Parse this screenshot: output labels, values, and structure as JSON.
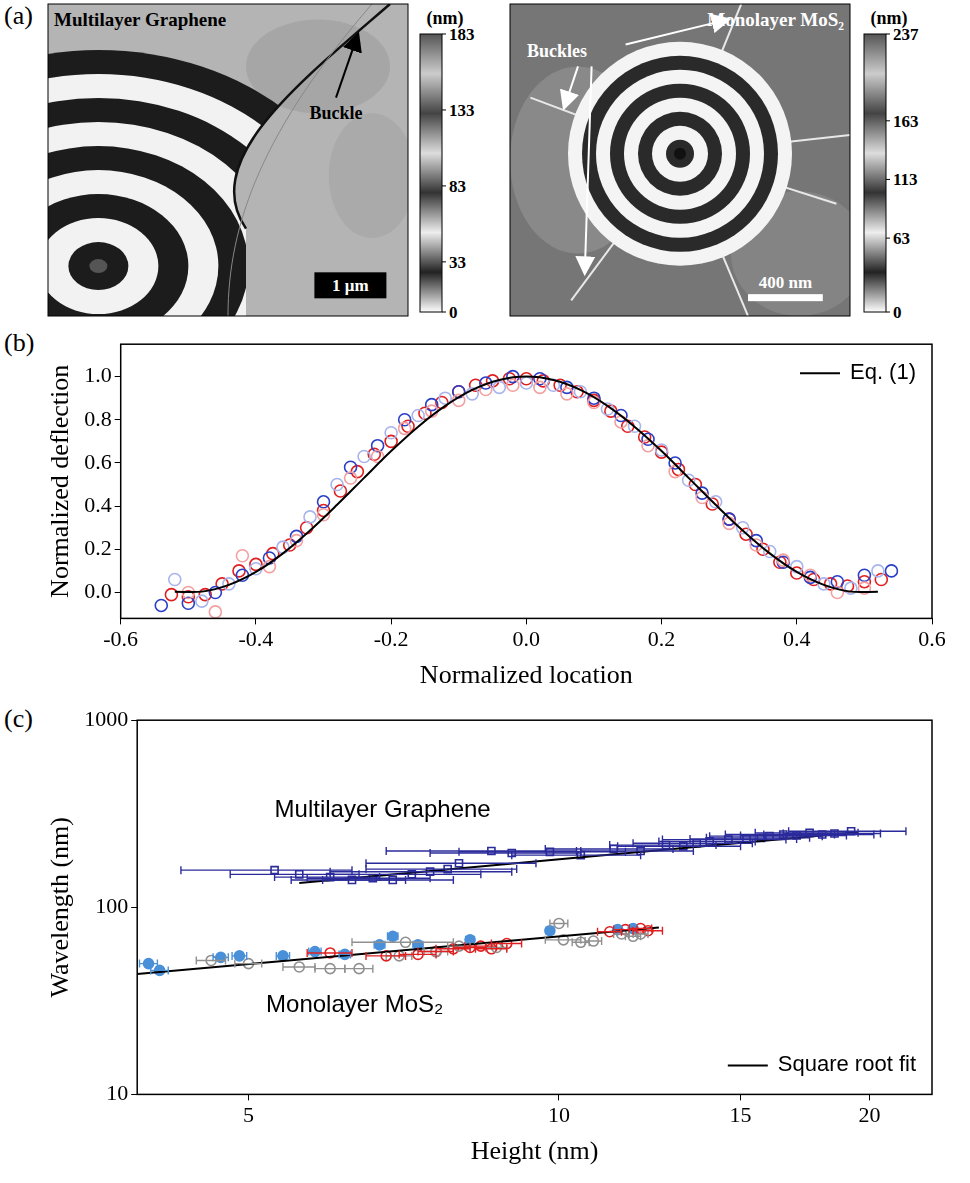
{
  "images": {
    "panel_label": "(a)",
    "items": [
      {
        "title": "Multilayer Graphene",
        "annotations": [
          "Buckle"
        ],
        "scale_bar": "1 μm",
        "colorbar": {
          "title": "(nm)",
          "range": [
            0,
            183
          ],
          "ticks": [
            0,
            33,
            83,
            133,
            183
          ]
        }
      },
      {
        "title": "Monolayer MoS₂",
        "annotations": [
          "Buckles"
        ],
        "scale_bar": "400 nm",
        "colorbar": {
          "title": "(nm)",
          "range": [
            0,
            237
          ],
          "ticks": [
            0,
            63,
            113,
            163,
            237
          ]
        }
      }
    ]
  },
  "chart_data": [
    {
      "panel_label": "(b)",
      "type": "scatter",
      "x_label": "Normalized location",
      "y_label": "Normalized deflection",
      "xlim": [
        -0.6,
        0.6
      ],
      "ylim": [
        -0.12,
        1.15
      ],
      "xticks": [
        -0.6,
        -0.4,
        -0.2,
        {
          "value": 0,
          "label": "0.0"
        },
        0.2,
        0.4,
        0.6
      ],
      "yticks": [
        {
          "value": 0,
          "label": "0.0"
        },
        0.2,
        0.4,
        0.6,
        0.8,
        {
          "value": 1,
          "label": "1.0"
        }
      ],
      "grid": false,
      "legend": "upper right",
      "series": [
        {
          "color": "#f2a0a0",
          "marker": "open_circle",
          "x": [
            -0.5,
            -0.46,
            -0.42,
            -0.38,
            -0.34,
            -0.3,
            -0.26,
            -0.22,
            -0.18,
            -0.14,
            -0.1,
            -0.06,
            -0.02,
            0.02,
            0.06,
            0.1,
            0.14,
            0.18,
            0.22,
            0.26,
            0.3,
            0.34,
            0.38,
            0.42,
            0.46,
            0.5
          ],
          "values": [
            0.0,
            -0.09,
            0.17,
            0.12,
            0.24,
            0.36,
            0.53,
            0.63,
            0.76,
            0.84,
            0.89,
            0.94,
            0.96,
            0.95,
            0.92,
            0.88,
            0.79,
            0.68,
            0.56,
            0.44,
            0.32,
            0.22,
            0.15,
            0.08,
            0.0,
            0.02
          ]
        },
        {
          "color": "#a8b4ec",
          "marker": "open_circle",
          "x": [
            -0.52,
            -0.48,
            -0.44,
            -0.4,
            -0.36,
            -0.32,
            -0.28,
            -0.24,
            -0.2,
            -0.16,
            -0.12,
            -0.08,
            -0.04,
            0,
            0.04,
            0.08,
            0.12,
            0.16,
            0.2,
            0.24,
            0.28,
            0.32,
            0.36,
            0.4,
            0.44,
            0.48,
            0.52
          ],
          "values": [
            0.06,
            -0.04,
            0.04,
            0.11,
            0.21,
            0.35,
            0.5,
            0.63,
            0.74,
            0.82,
            0.9,
            0.92,
            0.95,
            0.97,
            0.96,
            0.93,
            0.85,
            0.77,
            0.66,
            0.52,
            0.42,
            0.3,
            0.19,
            0.12,
            0.04,
            0.02,
            0.1
          ]
        },
        {
          "color": "#2a3fc8",
          "marker": "open_circle",
          "x": [
            -0.54,
            -0.5,
            -0.46,
            -0.42,
            -0.38,
            -0.34,
            -0.3,
            -0.26,
            -0.22,
            -0.18,
            -0.14,
            -0.1,
            -0.06,
            -0.02,
            0.02,
            0.06,
            0.1,
            0.14,
            0.18,
            0.22,
            0.26,
            0.3,
            0.34,
            0.38,
            0.42,
            0.46,
            0.5,
            0.54
          ],
          "values": [
            -0.06,
            -0.05,
            0.0,
            0.08,
            0.16,
            0.26,
            0.42,
            0.58,
            0.68,
            0.8,
            0.87,
            0.93,
            0.97,
            1.0,
            0.99,
            0.95,
            0.9,
            0.82,
            0.71,
            0.6,
            0.46,
            0.34,
            0.24,
            0.14,
            0.07,
            0.05,
            0.08,
            0.1
          ]
        },
        {
          "color": "#e02020",
          "marker": "open_circle",
          "x": [
            -0.525,
            -0.5,
            -0.475,
            -0.45,
            -0.425,
            -0.4,
            -0.375,
            -0.35,
            -0.325,
            -0.3,
            -0.275,
            -0.25,
            -0.225,
            -0.2,
            -0.175,
            -0.15,
            -0.125,
            -0.1,
            -0.075,
            -0.05,
            -0.025,
            0,
            0.025,
            0.05,
            0.075,
            0.1,
            0.125,
            0.15,
            0.175,
            0.2,
            0.225,
            0.25,
            0.275,
            0.3,
            0.325,
            0.35,
            0.375,
            0.4,
            0.425,
            0.45,
            0.475,
            0.5,
            0.525
          ],
          "values": [
            -0.01,
            -0.02,
            -0.01,
            0.04,
            0.1,
            0.13,
            0.18,
            0.22,
            0.3,
            0.38,
            0.47,
            0.56,
            0.64,
            0.7,
            0.77,
            0.83,
            0.88,
            0.93,
            0.96,
            0.98,
            0.99,
            0.99,
            0.98,
            0.96,
            0.93,
            0.89,
            0.84,
            0.77,
            0.72,
            0.65,
            0.57,
            0.5,
            0.41,
            0.34,
            0.27,
            0.2,
            0.14,
            0.09,
            0.06,
            0.04,
            0.03,
            0.05,
            0.06
          ]
        },
        {
          "name": "Eq. (1)",
          "type": "line",
          "color": "#000000",
          "x": [
            -0.52,
            -0.48,
            -0.44,
            -0.4,
            -0.36,
            -0.32,
            -0.28,
            -0.24,
            -0.2,
            -0.16,
            -0.12,
            -0.08,
            -0.04,
            0,
            0.04,
            0.08,
            0.12,
            0.16,
            0.2,
            0.24,
            0.28,
            0.32,
            0.36,
            0.4,
            0.44,
            0.48,
            0.52
          ],
          "values": [
            0.004,
            0.004,
            0.035,
            0.095,
            0.181,
            0.287,
            0.406,
            0.531,
            0.655,
            0.768,
            0.864,
            0.938,
            0.984,
            1.0,
            0.984,
            0.938,
            0.864,
            0.768,
            0.655,
            0.531,
            0.406,
            0.287,
            0.181,
            0.095,
            0.035,
            0.004,
            0.004
          ]
        }
      ]
    },
    {
      "panel_label": "(c)",
      "type": "scatter",
      "log": true,
      "x_label": "Height (nm)",
      "y_label": "Wavelength (nm)",
      "xlim": [
        3.9,
        23
      ],
      "ylim": [
        10,
        1000
      ],
      "xticks": [
        5,
        10,
        15,
        20
      ],
      "yticks": [
        10,
        100,
        1000
      ],
      "grid": false,
      "legend": "lower right",
      "annotations": [
        {
          "text": "Multilayer Graphene",
          "x": 5.3,
          "y": 330
        },
        {
          "text": "Monolayer MoS₂",
          "x": 5.2,
          "y": 30
        }
      ],
      "series": [
        {
          "color": "#2b2b9c",
          "marker": "open_square",
          "x": [
            5.3,
            5.6,
            6.0,
            6.3,
            6.6,
            6.9,
            7.2,
            7.5,
            7.8,
            8.0,
            8.6,
            9.0,
            9.8,
            10.5,
            11.3,
            12.0,
            12.7,
            13.2,
            13.6,
            14.0,
            14.6,
            15.2,
            15.7,
            16.0,
            16.5,
            17.0,
            17.5,
            18.0,
            18.5,
            19.2
          ],
          "values": [
            158,
            150,
            145,
            140,
            143,
            140,
            150,
            155,
            160,
            172,
            200,
            195,
            198,
            190,
            205,
            200,
            215,
            212,
            220,
            225,
            230,
            232,
            235,
            240,
            245,
            242,
            250,
            245,
            248,
            255
          ],
          "x_err": [
            1.0,
            0.8,
            0.7,
            0.8,
            0.9,
            1.0,
            1.2,
            1.5,
            1.3,
            1.5,
            1.8,
            1.5,
            1.8,
            1.5,
            1.6,
            1.5,
            1.5,
            1.8,
            1.8,
            1.5,
            2.0,
            1.8,
            1.8,
            2.0,
            2.0,
            2.0,
            2.0,
            2.2,
            2.0,
            2.5
          ]
        },
        {
          "color": "#4a90d9",
          "marker": "circle",
          "x": [
            4.0,
            4.1,
            4.7,
            4.9,
            5.4,
            5.8,
            6.2,
            6.7,
            6.9,
            7.3,
            8.2,
            9.8,
            11.4,
            11.8
          ],
          "values": [
            50,
            46,
            54,
            55,
            55,
            58,
            56,
            63,
            70,
            63,
            67,
            75,
            76,
            77
          ],
          "x_err": [
            0.08,
            0.08,
            0.08,
            0.08,
            0.08,
            0.08,
            0.08,
            0.08,
            0.08,
            0.08,
            0.08,
            0.08,
            0.08,
            0.08
          ]
        },
        {
          "color": "#909090",
          "marker": "open_circle",
          "x": [
            4.6,
            5.0,
            5.6,
            6.0,
            6.4,
            7.0,
            7.1,
            7.6,
            8.0,
            8.7,
            10.0,
            10.1,
            10.5,
            10.8,
            11.5,
            11.8,
            12.0
          ],
          "values": [
            52,
            50,
            48,
            47,
            47,
            55,
            65,
            58,
            62,
            61,
            82,
            67,
            65,
            66,
            72,
            70,
            72
          ],
          "x_err": [
            0.15,
            0.15,
            0.2,
            0.2,
            0.2,
            0.2,
            0.8,
            0.2,
            0.2,
            0.2,
            0.2,
            0.4,
            0.2,
            0.2,
            0.2,
            0.2,
            0.2
          ]
        },
        {
          "color": "#e02020",
          "marker": "open_circle",
          "x": [
            6.0,
            6.8,
            7.3,
            7.6,
            7.9,
            8.2,
            8.4,
            8.6,
            8.9,
            11.2,
            11.6,
            12.0,
            12.2
          ],
          "values": [
            57,
            55,
            56,
            58,
            60,
            61,
            62,
            60,
            64,
            74,
            76,
            77,
            75
          ],
          "x_err": [
            0.3,
            0.3,
            0.3,
            0.3,
            0.3,
            0.3,
            0.3,
            0.3,
            0.3,
            0.3,
            0.3,
            0.3,
            0.4
          ]
        },
        {
          "name": "Square root fit",
          "type": "line",
          "color": "#000000",
          "x": [
            5.6,
            19.5,
            null,
            3.9,
            12.5
          ],
          "values": [
            135,
            252,
            null,
            44,
            78
          ]
        }
      ]
    }
  ]
}
